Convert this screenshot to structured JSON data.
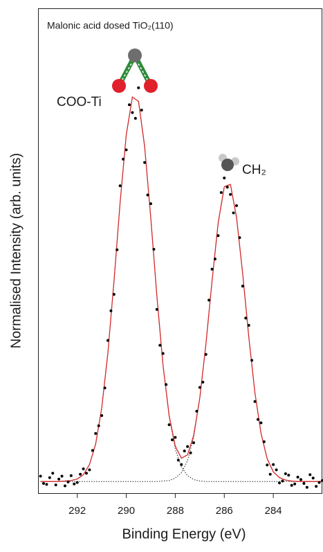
{
  "chart_data": {
    "type": "scatter",
    "title": "Malonic acid dosed TiO₂(110)",
    "x_label": "Binding Energy (eV)",
    "y_label": "Normalised Intensity (arb. units)",
    "annotations": [
      "COO-Ti",
      "CH₂"
    ],
    "xlim": [
      293.6,
      282.0
    ],
    "ylim": [
      0,
      100
    ],
    "xticks": [
      292,
      290,
      288,
      286,
      284
    ],
    "x": [
      293.5,
      293.25,
      293.0,
      292.75,
      292.5,
      292.25,
      292.0,
      291.75,
      291.5,
      291.25,
      291.0,
      290.75,
      290.5,
      290.25,
      290.0,
      289.75,
      289.5,
      289.25,
      289.0,
      288.75,
      288.5,
      288.25,
      288.0,
      287.75,
      287.5,
      287.25,
      287.0,
      286.75,
      286.5,
      286.25,
      286.0,
      285.75,
      285.5,
      285.25,
      285.0,
      284.75,
      284.5,
      284.25,
      284.0,
      283.75,
      283.5,
      283.25,
      283.0,
      282.75,
      282.5,
      282.25,
      282.0
    ],
    "series": [
      {
        "type": "line",
        "color": "#222222",
        "dash": "dotted",
        "values": [
          2.4,
          2.4,
          2.4,
          2.4,
          2.5,
          2.6,
          2.9,
          3.8,
          5.9,
          10.1,
          17.6,
          28.9,
          43.8,
          60.0,
          73.9,
          81.7,
          80.8,
          71.5,
          56.8,
          40.6,
          26.3,
          15.8,
          9.1,
          5.4,
          3.6,
          2.8,
          2.5,
          2.4,
          2.4,
          2.4,
          2.4,
          2.4,
          2.4,
          2.4,
          2.4,
          2.4,
          2.4,
          2.4,
          2.4,
          2.4,
          2.4,
          2.4,
          2.4,
          2.4,
          2.4,
          2.4,
          2.4
        ]
      },
      {
        "type": "line",
        "color": "#222222",
        "dash": "dotted",
        "values": [
          2.4,
          2.4,
          2.4,
          2.4,
          2.4,
          2.4,
          2.4,
          2.4,
          2.4,
          2.4,
          2.4,
          2.4,
          2.4,
          2.4,
          2.4,
          2.4,
          2.4,
          2.4,
          2.4,
          2.4,
          2.5,
          2.6,
          3.1,
          4.2,
          6.7,
          11.5,
          19.5,
          30.7,
          43.7,
          55.7,
          63.2,
          63.7,
          56.9,
          45.3,
          32.2,
          20.7,
          12.3,
          7.1,
          4.4,
          3.2,
          2.7,
          2.5,
          2.4,
          2.4,
          2.4,
          2.4,
          2.4
        ]
      },
      {
        "type": "line",
        "color": "#d42a2a",
        "dash": "solid",
        "values": [
          2.4,
          2.4,
          2.4,
          2.4,
          2.5,
          2.6,
          2.9,
          3.8,
          5.9,
          10.1,
          17.6,
          28.9,
          43.8,
          60.0,
          73.9,
          81.7,
          80.8,
          71.5,
          56.8,
          40.6,
          26.4,
          16.0,
          9.7,
          7.2,
          7.9,
          11.9,
          19.6,
          30.7,
          43.7,
          55.7,
          63.2,
          63.7,
          56.9,
          45.3,
          32.2,
          20.7,
          12.3,
          7.1,
          4.4,
          3.2,
          2.7,
          2.5,
          2.4,
          2.4,
          2.4,
          2.4,
          2.4
        ]
      }
    ],
    "points": {
      "color": "#000000",
      "x": [
        293.5,
        293.375,
        293.25,
        293.125,
        293.0,
        292.875,
        292.75,
        292.625,
        292.5,
        292.375,
        292.25,
        292.125,
        292.0,
        291.875,
        291.75,
        291.625,
        291.5,
        291.375,
        291.25,
        291.125,
        291.0,
        290.875,
        290.75,
        290.625,
        290.5,
        290.375,
        290.25,
        290.125,
        290.0,
        289.875,
        289.75,
        289.625,
        289.5,
        289.375,
        289.25,
        289.125,
        289.0,
        288.875,
        288.75,
        288.625,
        288.5,
        288.375,
        288.25,
        288.125,
        288.0,
        287.875,
        287.75,
        287.625,
        287.5,
        287.375,
        287.25,
        287.125,
        287.0,
        286.875,
        286.75,
        286.625,
        286.5,
        286.375,
        286.25,
        286.125,
        286.0,
        285.875,
        285.75,
        285.625,
        285.5,
        285.375,
        285.25,
        285.125,
        285.0,
        284.875,
        284.75,
        284.625,
        284.5,
        284.375,
        284.25,
        284.125,
        284.0,
        283.875,
        283.75,
        283.625,
        283.5,
        283.375,
        283.25,
        283.125,
        283.0,
        282.875,
        282.75,
        282.625,
        282.5,
        282.375,
        282.25,
        282.125,
        282.0
      ],
      "values": [
        3.5,
        2.0,
        1.8,
        3.2,
        4.1,
        1.7,
        2.9,
        3.5,
        1.5,
        2.3,
        3.6,
        1.9,
        2.2,
        3.9,
        5.0,
        4.1,
        4.8,
        8.8,
        12.3,
        13.9,
        16.0,
        21.7,
        31.5,
        37.6,
        41.0,
        50.2,
        63.4,
        68.9,
        70.8,
        80.1,
        78.5,
        77.3,
        83.6,
        79.0,
        68.2,
        61.5,
        59.7,
        50.3,
        37.9,
        30.5,
        28.8,
        22.4,
        14.1,
        11.0,
        11.5,
        6.8,
        5.9,
        8.7,
        9.6,
        8.3,
        10.4,
        16.9,
        21.8,
        22.9,
        28.6,
        39.8,
        46.2,
        48.3,
        53.1,
        62.0,
        65.0,
        63.1,
        61.6,
        57.8,
        59.3,
        52.7,
        42.7,
        36.1,
        34.6,
        27.4,
        18.9,
        15.2,
        14.5,
        10.6,
        5.8,
        3.9,
        5.9,
        4.8,
        2.1,
        2.5,
        4.0,
        3.7,
        1.6,
        1.9,
        3.3,
        2.8,
        2.0,
        1.2,
        3.8,
        3.1,
        1.4,
        2.2,
        2.6
      ]
    }
  }
}
